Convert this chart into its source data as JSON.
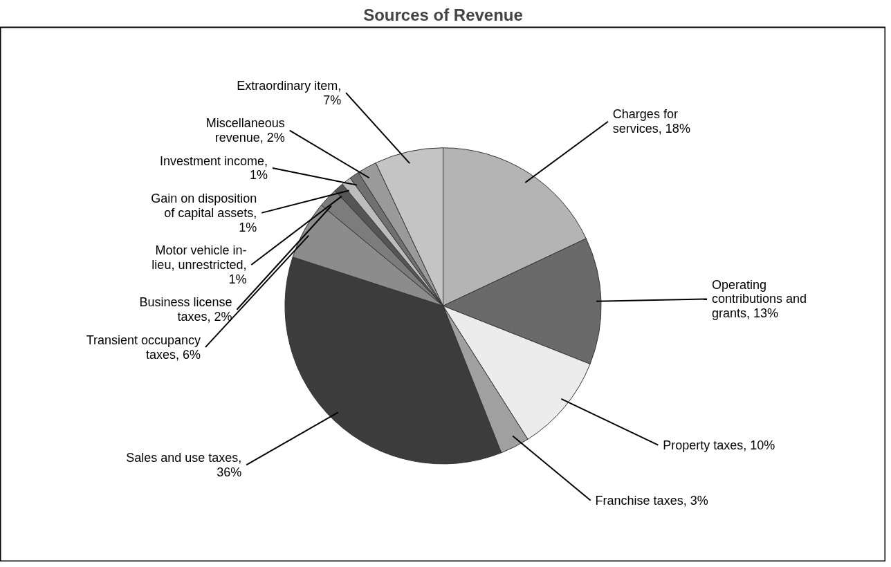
{
  "chart_data": {
    "type": "pie",
    "title": "Sources of Revenue",
    "categories": [
      "Charges for services",
      "Operating contributions and grants",
      "Property taxes",
      "Franchise taxes",
      "Sales and use taxes",
      "Transient occupancy taxes",
      "Business license taxes",
      "Motor vehicle in-lieu, unrestricted",
      "Gain on disposition of capital assets",
      "Investment income",
      "Miscellaneous revenue",
      "Extraordinary item"
    ],
    "values": [
      18,
      13,
      10,
      3,
      36,
      6,
      2,
      1,
      1,
      1,
      2,
      7
    ],
    "value_labels": [
      ", 18%",
      ", 13%",
      ", 10%",
      ", 3%",
      ", 36%",
      ", 6%",
      ", 2%",
      ", 1%",
      ", 1%",
      ", 1%",
      ", 2%",
      ", 7%"
    ],
    "colors": [
      "#b4b4b4",
      "#6a6a6a",
      "#ececec",
      "#a0a0a0",
      "#3c3c3c",
      "#8c8c8c",
      "#7c7c7c",
      "#555555",
      "#bcbcbc",
      "#707070",
      "#9a9a9a",
      "#c4c4c4"
    ]
  }
}
